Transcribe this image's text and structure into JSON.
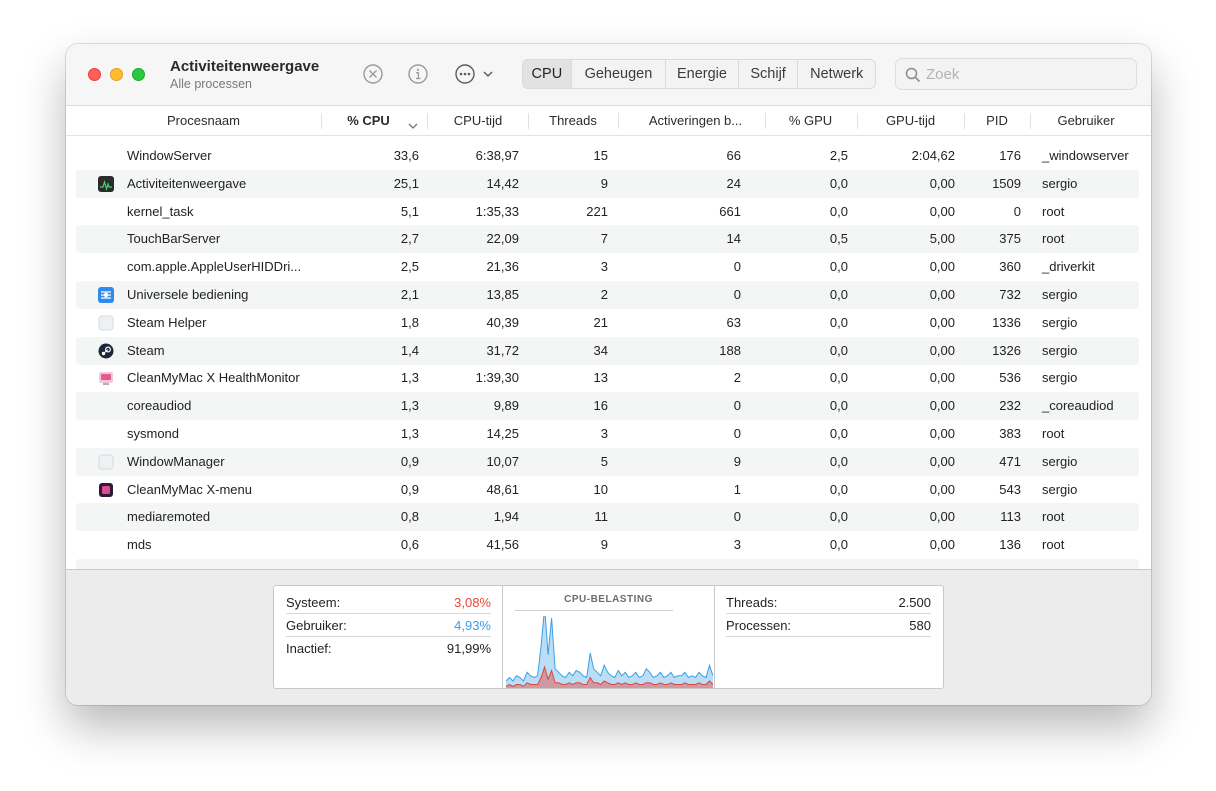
{
  "window": {
    "title": "Activiteitenweergave",
    "subtitle": "Alle processen"
  },
  "toolbar": {
    "tabs": [
      {
        "label": "CPU",
        "active": true
      },
      {
        "label": "Geheugen",
        "active": false
      },
      {
        "label": "Energie",
        "active": false
      },
      {
        "label": "Schijf",
        "active": false
      },
      {
        "label": "Netwerk",
        "active": false
      }
    ],
    "search_placeholder": "Zoek"
  },
  "table": {
    "columns": [
      "Procesnaam",
      "% CPU",
      "CPU-tijd",
      "Threads",
      "Activeringen b...",
      "% GPU",
      "GPU-tijd",
      "PID",
      "Gebruiker"
    ],
    "rows": [
      {
        "name": "WindowServer",
        "icon": "none",
        "cpu": "33,6",
        "cputime": "6:38,97",
        "threads": "15",
        "wakeups": "66",
        "gpu": "2,5",
        "gputime": "2:04,62",
        "pid": "176",
        "user": "_windowserver"
      },
      {
        "name": "Activiteitenweergave",
        "icon": "activity-monitor-icon",
        "cpu": "25,1",
        "cputime": "14,42",
        "threads": "9",
        "wakeups": "24",
        "gpu": "0,0",
        "gputime": "0,00",
        "pid": "1509",
        "user": "sergio"
      },
      {
        "name": "kernel_task",
        "icon": "none",
        "cpu": "5,1",
        "cputime": "1:35,33",
        "threads": "221",
        "wakeups": "661",
        "gpu": "0,0",
        "gputime": "0,00",
        "pid": "0",
        "user": "root"
      },
      {
        "name": "TouchBarServer",
        "icon": "none",
        "cpu": "2,7",
        "cputime": "22,09",
        "threads": "7",
        "wakeups": "14",
        "gpu": "0,5",
        "gputime": "5,00",
        "pid": "375",
        "user": "root"
      },
      {
        "name": "com.apple.AppleUserHIDDri...",
        "icon": "none",
        "cpu": "2,5",
        "cputime": "21,36",
        "threads": "3",
        "wakeups": "0",
        "gpu": "0,0",
        "gputime": "0,00",
        "pid": "360",
        "user": "_driverkit"
      },
      {
        "name": "Universele bediening",
        "icon": "universal-control-icon",
        "cpu": "2,1",
        "cputime": "13,85",
        "threads": "2",
        "wakeups": "0",
        "gpu": "0,0",
        "gputime": "0,00",
        "pid": "732",
        "user": "sergio"
      },
      {
        "name": "Steam Helper",
        "icon": "generic-app-icon",
        "cpu": "1,8",
        "cputime": "40,39",
        "threads": "21",
        "wakeups": "63",
        "gpu": "0,0",
        "gputime": "0,00",
        "pid": "1336",
        "user": "sergio"
      },
      {
        "name": "Steam",
        "icon": "steam-icon",
        "cpu": "1,4",
        "cputime": "31,72",
        "threads": "34",
        "wakeups": "188",
        "gpu": "0,0",
        "gputime": "0,00",
        "pid": "1326",
        "user": "sergio"
      },
      {
        "name": "CleanMyMac X HealthMonitor",
        "icon": "cleanmymac-healthmonitor-icon",
        "cpu": "1,3",
        "cputime": "1:39,30",
        "threads": "13",
        "wakeups": "2",
        "gpu": "0,0",
        "gputime": "0,00",
        "pid": "536",
        "user": "sergio"
      },
      {
        "name": "coreaudiod",
        "icon": "none",
        "cpu": "1,3",
        "cputime": "9,89",
        "threads": "16",
        "wakeups": "0",
        "gpu": "0,0",
        "gputime": "0,00",
        "pid": "232",
        "user": "_coreaudiod"
      },
      {
        "name": "sysmond",
        "icon": "none",
        "cpu": "1,3",
        "cputime": "14,25",
        "threads": "3",
        "wakeups": "0",
        "gpu": "0,0",
        "gputime": "0,00",
        "pid": "383",
        "user": "root"
      },
      {
        "name": "WindowManager",
        "icon": "generic-app-icon",
        "cpu": "0,9",
        "cputime": "10,07",
        "threads": "5",
        "wakeups": "9",
        "gpu": "0,0",
        "gputime": "0,00",
        "pid": "471",
        "user": "sergio"
      },
      {
        "name": "CleanMyMac X-menu",
        "icon": "cleanmymac-menu-icon",
        "cpu": "0,9",
        "cputime": "48,61",
        "threads": "10",
        "wakeups": "1",
        "gpu": "0,0",
        "gputime": "0,00",
        "pid": "543",
        "user": "sergio"
      },
      {
        "name": "mediaremoted",
        "icon": "none",
        "cpu": "0,8",
        "cputime": "1,94",
        "threads": "11",
        "wakeups": "0",
        "gpu": "0,0",
        "gputime": "0,00",
        "pid": "113",
        "user": "root"
      },
      {
        "name": "mds",
        "icon": "none",
        "cpu": "0,6",
        "cputime": "41,56",
        "threads": "9",
        "wakeups": "3",
        "gpu": "0,0",
        "gputime": "0,00",
        "pid": "136",
        "user": "root"
      }
    ]
  },
  "summary": {
    "left": [
      {
        "label": "Systeem:",
        "value": "3,08%",
        "color": "#e5453b"
      },
      {
        "label": "Gebruiker:",
        "value": "4,93%",
        "color": "#3aa0e6"
      },
      {
        "label": "Inactief:",
        "value": "91,99%",
        "color": "#222222"
      }
    ],
    "graph_title": "CPU-BELASTING",
    "right": [
      {
        "label": "Threads:",
        "value": "2.500"
      },
      {
        "label": "Processen:",
        "value": "580"
      }
    ]
  },
  "cpu_load_history": {
    "system_color": "#e5453b",
    "user_color": "#3aa0e6",
    "user": [
      3,
      4,
      3,
      5,
      4,
      3,
      6,
      5,
      4,
      5,
      18,
      34,
      14,
      30,
      8,
      6,
      5,
      4,
      6,
      5,
      7,
      6,
      5,
      4,
      14,
      8,
      6,
      5,
      9,
      6,
      5,
      4,
      7,
      5,
      6,
      4,
      5,
      6,
      4,
      5,
      8,
      6,
      4,
      5,
      6,
      4,
      5,
      6,
      4,
      5,
      5,
      6,
      4,
      5,
      4,
      6,
      5,
      4,
      9,
      5
    ],
    "system": [
      1,
      2,
      1,
      2,
      2,
      1,
      3,
      2,
      2,
      2,
      6,
      12,
      5,
      10,
      3,
      3,
      2,
      2,
      3,
      2,
      3,
      3,
      2,
      2,
      6,
      3,
      3,
      2,
      4,
      3,
      2,
      2,
      3,
      2,
      3,
      2,
      2,
      3,
      2,
      2,
      3,
      3,
      2,
      2,
      3,
      2,
      2,
      3,
      2,
      2,
      2,
      3,
      2,
      2,
      2,
      3,
      2,
      2,
      4,
      2
    ]
  },
  "colors": {
    "accent_red": "#e5453b",
    "accent_blue": "#3aa0e6"
  }
}
